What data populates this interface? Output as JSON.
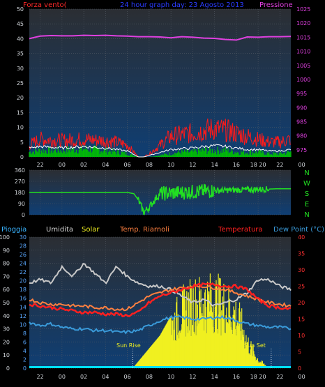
{
  "colors": {
    "background": "#000000",
    "panel_top": "#2b2e33",
    "panel_bottom": "#0f3e73",
    "grid": "#555c66",
    "axis_text": "#cfd3d8",
    "wind_label": "#ff2a2a",
    "title": "#2a3cff",
    "pressure": "#e040e0",
    "wind_speed": "#ff1a1a",
    "wind_avg": "#ffffff",
    "wind_gust": "#00c000",
    "direction": "#22e022",
    "rain": "#39b4ff",
    "humidity": "#c8c8c8",
    "solar": "#f0f020",
    "heat_index": "#ff8040",
    "temperature": "#ff2020",
    "dew_point": "#3a9ad9",
    "hum_label": "#d0d0d0",
    "temp_axis": "#ff3030",
    "rain_axis": "#5aa8ff",
    "cyan_base": "#00e0ff"
  },
  "texts": {
    "title": "24 hour graph day: 23 Agosto 2013",
    "wind_label": "Forza vento(",
    "pressure_label": "Pressione",
    "rain_label": "Pioggia",
    "humidity_label": "Umidita",
    "solar_label": "Solar",
    "heat_label": "Temp. Riarnoli",
    "temp_label": "Temperatura",
    "dew_label": "Dew Point (°C)",
    "sunrise": "Sun Rise",
    "sunset": "Sun Set"
  },
  "compass": [
    "N",
    "W",
    "S",
    "E",
    "N"
  ],
  "x_ticks_top": [
    "22",
    "00",
    "02",
    "04",
    "06",
    "08",
    "10",
    "12",
    "14",
    "16",
    "18 20",
    "22",
    "00"
  ],
  "x_ticks_bottom": [
    "22",
    "00",
    "02",
    "04",
    "06",
    "08",
    "10",
    "12",
    "14",
    "16",
    "18 20",
    "22",
    "00"
  ],
  "chart_data": [
    {
      "type": "line",
      "title": "24 hour graph day: 23 Agosto 2013",
      "left_axis": {
        "label": "Forza vento(",
        "ticks": [
          0,
          5,
          10,
          15,
          20,
          25,
          30,
          35,
          40,
          45,
          50
        ],
        "ylim": [
          0,
          50
        ]
      },
      "right_axis": {
        "label": "Pressione",
        "ticks": [
          975,
          980,
          985,
          990,
          995,
          1000,
          1005,
          1010,
          1015,
          1020,
          1025
        ],
        "ylim": [
          972.5,
          1025
        ]
      },
      "x_range_hours": [
        21,
        45
      ],
      "series": [
        {
          "name": "Pressione",
          "axis": "right",
          "x": [
            21,
            22,
            23,
            24,
            25,
            26,
            27,
            28,
            29,
            30,
            31,
            32,
            33,
            34,
            35,
            36,
            37,
            38,
            39,
            40,
            41,
            42,
            43,
            44,
            45
          ],
          "y": [
            1014.5,
            1015.4,
            1015.6,
            1015.5,
            1015.5,
            1015.7,
            1015.6,
            1015.7,
            1015.5,
            1015.4,
            1015.2,
            1015.2,
            1015.1,
            1014.8,
            1015.2,
            1015.0,
            1014.7,
            1014.6,
            1014.2,
            1014.0,
            1015.1,
            1015.0,
            1015.2,
            1015.2,
            1015.3
          ]
        },
        {
          "axis": "left",
          "x": [
            21,
            22,
            24,
            26,
            28,
            29,
            30,
            31,
            31.5,
            32,
            33,
            34,
            35,
            36,
            37,
            38,
            39,
            40,
            41,
            42,
            43,
            44,
            45
          ],
          "y": [
            4,
            6,
            5.5,
            6,
            5.5,
            5,
            4,
            0,
            0,
            1,
            4,
            7,
            7.5,
            8,
            9,
            9.5,
            9,
            8,
            7,
            6,
            5,
            5,
            6
          ]
        },
        {
          "axis": "left",
          "x": [
            21,
            22,
            24,
            26,
            28,
            29,
            30,
            31,
            31.5,
            32,
            33,
            34,
            35,
            36,
            37,
            38,
            39,
            40,
            41,
            42,
            43,
            44,
            45
          ],
          "y": [
            3,
            3.5,
            3,
            3.5,
            3,
            2.5,
            2,
            0,
            0,
            0.5,
            1.5,
            2.5,
            2.8,
            3,
            3.5,
            3.8,
            3.5,
            3,
            2.5,
            2.5,
            2,
            2,
            2.5
          ]
        },
        {
          "axis": "left",
          "x": [
            21,
            22,
            24,
            26,
            28,
            29,
            30,
            31,
            31.5,
            32,
            33,
            34,
            35,
            36,
            37,
            38,
            39,
            40,
            41,
            42,
            43,
            44,
            45
          ],
          "y": [
            1.5,
            2,
            2,
            2.5,
            2,
            1.5,
            1,
            0,
            0,
            0,
            0.5,
            1,
            1.5,
            1.5,
            2,
            2,
            2,
            1.5,
            1.5,
            1.5,
            1,
            1,
            1.5
          ]
        }
      ]
    },
    {
      "type": "line",
      "y_ticks": [
        0,
        90,
        180,
        270,
        360
      ],
      "ylim": [
        0,
        360
      ],
      "series": [
        {
          "x": [
            21,
            24,
            27,
            30,
            30.6,
            31,
            31.3,
            31.5,
            32,
            32.5,
            33,
            34,
            36,
            38,
            40,
            42,
            44,
            45
          ],
          "y": [
            180,
            180,
            180,
            180,
            170,
            120,
            60,
            20,
            60,
            120,
            170,
            175,
            185,
            195,
            200,
            205,
            210,
            210
          ]
        }
      ]
    },
    {
      "type": "line",
      "left_axis_outer": {
        "label": "Pioggia",
        "ticks": [
          0,
          10,
          20,
          30,
          40,
          50,
          60,
          70,
          80,
          90,
          100
        ],
        "ylim": [
          0,
          100
        ]
      },
      "left_axis_inner": {
        "ticks": [
          0,
          2,
          4,
          6,
          8,
          10,
          12,
          14,
          16,
          18,
          20,
          22,
          24,
          26,
          28,
          30
        ],
        "ylim": [
          0,
          30
        ]
      },
      "right_axis": {
        "label": "Dew Point (°C)",
        "ticks": [
          0,
          5,
          10,
          15,
          20,
          25,
          30,
          35,
          40
        ],
        "ylim": [
          0,
          40
        ]
      },
      "x_range_hours": [
        21,
        45
      ],
      "annotations": [
        {
          "text": "Sun Rise",
          "x": 30.5
        },
        {
          "text": "Sun Set",
          "x": 43.2
        }
      ],
      "series": [
        {
          "name": "Umidita",
          "axis": "right",
          "x": [
            21,
            22,
            23,
            24,
            25,
            26,
            27,
            28,
            29,
            30,
            31,
            32,
            33,
            34,
            35,
            36,
            37,
            38,
            39,
            40,
            41,
            42,
            43,
            44,
            45
          ],
          "y": [
            26,
            27,
            26,
            31,
            28,
            32,
            29,
            26,
            31,
            28,
            26,
            25,
            25,
            24,
            22,
            20,
            21,
            19,
            20,
            21,
            23,
            27,
            27,
            25,
            24
          ]
        },
        {
          "name": "Solar",
          "axis": "left_outer",
          "x": [
            30.5,
            31,
            32,
            33,
            34,
            35,
            36,
            37,
            38,
            39,
            40,
            40.5,
            41,
            42,
            43
          ],
          "y": [
            0,
            5,
            15,
            25,
            40,
            55,
            62,
            64,
            65,
            60,
            50,
            40,
            25,
            8,
            0
          ]
        },
        {
          "name": "Temp. Riarnoli",
          "axis": "right",
          "x": [
            21,
            22,
            23,
            24,
            25,
            26,
            27,
            28,
            29,
            30,
            31,
            32,
            33,
            34,
            35,
            36,
            37,
            38,
            39,
            40,
            41,
            42,
            43,
            44,
            45
          ],
          "y": [
            21,
            20,
            19.5,
            19.5,
            19,
            19,
            18.5,
            18.5,
            18,
            18,
            20,
            22,
            23,
            24,
            24.5,
            25,
            25,
            24.5,
            24,
            23,
            22,
            21,
            20,
            19.5,
            19
          ]
        },
        {
          "name": "Temperatura",
          "axis": "right",
          "x": [
            21,
            22,
            23,
            24,
            25,
            26,
            27,
            28,
            29,
            30,
            31,
            32,
            33,
            34,
            35,
            36,
            37,
            38,
            39,
            40,
            41,
            42,
            43,
            44,
            45
          ],
          "y": [
            19.5,
            19,
            18.5,
            18,
            17.5,
            17,
            17,
            16.5,
            16.5,
            16,
            17,
            20,
            22,
            23,
            24,
            25,
            25.5,
            25.5,
            25,
            25,
            24,
            21,
            19,
            18.5,
            18
          ]
        },
        {
          "name": "Dew Point (°C)",
          "axis": "right",
          "x": [
            21,
            22,
            23,
            24,
            25,
            26,
            27,
            28,
            29,
            30,
            31,
            32,
            33,
            34,
            35,
            36,
            37,
            38,
            39,
            40,
            41,
            42,
            43,
            44,
            45
          ],
          "y": [
            14,
            13,
            13.5,
            12.5,
            12,
            12,
            11.5,
            11.5,
            11,
            11,
            11.5,
            13,
            14.5,
            15.5,
            15.5,
            15,
            15,
            15.5,
            15.5,
            14.5,
            13.5,
            13,
            12.5,
            12.5,
            12
          ]
        },
        {
          "name": "Pioggia",
          "axis": "left_outer",
          "x": [
            21,
            45
          ],
          "y": [
            0,
            0
          ]
        }
      ]
    }
  ]
}
